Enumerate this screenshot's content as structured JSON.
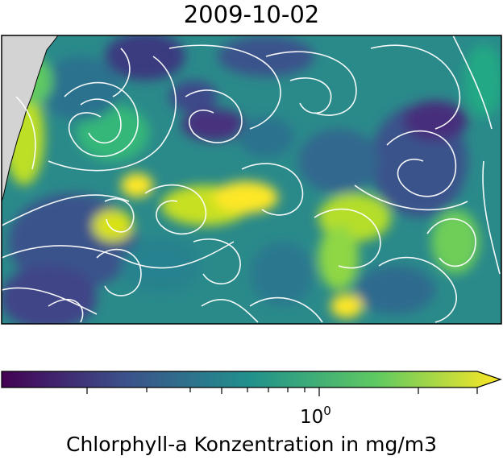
{
  "title": "2009-10-02",
  "map": {
    "variable": "Chlorphyll-a Konzentration",
    "overlay": "streamlines",
    "land_color": "#d3d3d3",
    "streamline_color": "#ffffff"
  },
  "colorbar": {
    "label": "Chlorphyll-a Konzentration in mg/m3",
    "colormap": "viridis",
    "scale": "log",
    "extend": "max",
    "major_tick_base": "10",
    "major_tick_exp": "0",
    "colors": [
      "#440154",
      "#3b528b",
      "#21918c",
      "#5ec962",
      "#fde725"
    ]
  }
}
